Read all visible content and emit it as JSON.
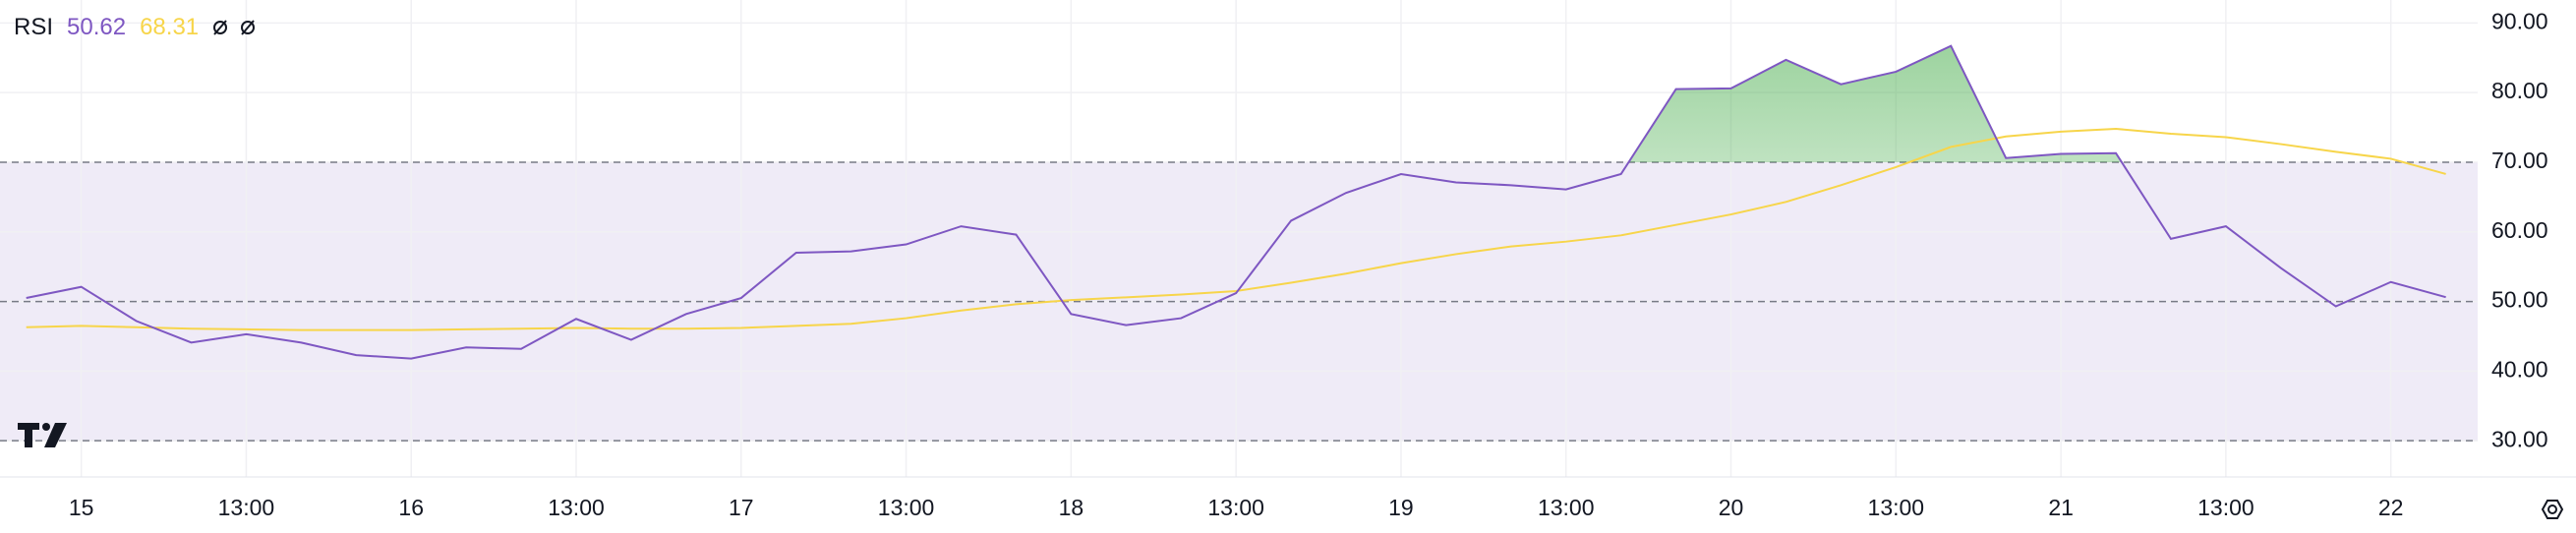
{
  "chart_data": {
    "type": "line",
    "title": "RSI",
    "categories": [
      null,
      "15",
      null,
      null,
      "13:00",
      null,
      null,
      "16",
      null,
      null,
      "13:00",
      null,
      null,
      "17",
      null,
      null,
      "13:00",
      null,
      null,
      "18",
      null,
      null,
      "13:00",
      null,
      null,
      "19",
      null,
      null,
      "13:00",
      null,
      null,
      "20",
      null,
      null,
      "13:00",
      null,
      null,
      "21",
      null,
      null,
      "13:00",
      null,
      null,
      "22",
      null
    ],
    "series": [
      {
        "color": "#7e57c2",
        "values": [
          50.5,
          52.1,
          47.2,
          44.1,
          45.3,
          44.1,
          42.3,
          41.8,
          43.4,
          43.2,
          47.5,
          44.5,
          48.2,
          50.5,
          57.0,
          57.2,
          58.2,
          60.8,
          59.6,
          48.2,
          46.6,
          47.6,
          51.2,
          61.6,
          65.6,
          68.3,
          67.1,
          66.7,
          66.1,
          68.3,
          80.5,
          80.6,
          84.7,
          81.2,
          83.0,
          86.7,
          70.6,
          71.2,
          71.3,
          59.0,
          60.8,
          54.8,
          49.3,
          52.8,
          50.62
        ]
      },
      {
        "color": "#f7d54a",
        "values": [
          46.3,
          46.5,
          46.3,
          46.1,
          46.0,
          45.9,
          45.9,
          45.9,
          46.0,
          46.1,
          46.2,
          46.1,
          46.1,
          46.2,
          46.5,
          46.8,
          47.6,
          48.7,
          49.6,
          50.2,
          50.6,
          51.0,
          51.5,
          52.7,
          54.0,
          55.5,
          56.8,
          57.9,
          58.6,
          59.5,
          61.0,
          62.5,
          64.3,
          66.7,
          69.3,
          72.2,
          73.7,
          74.4,
          74.8,
          74.1,
          73.6,
          72.6,
          71.5,
          70.5,
          68.31
        ]
      }
    ],
    "levels": [
      70,
      50,
      30
    ],
    "band_color": "#efebf7",
    "overbought_color": "#4caf50",
    "ylim": [
      24.8,
      93.3
    ],
    "yticks": [
      {
        "value": 30,
        "label": "30.00"
      },
      {
        "value": 40,
        "label": "40.00"
      },
      {
        "value": 50,
        "label": "50.00"
      },
      {
        "value": 60,
        "label": "60.00"
      },
      {
        "value": 70,
        "label": "70.00"
      },
      {
        "value": 80,
        "label": "80.00"
      },
      {
        "value": 90,
        "label": "90.00"
      }
    ],
    "grid": true
  }
}
